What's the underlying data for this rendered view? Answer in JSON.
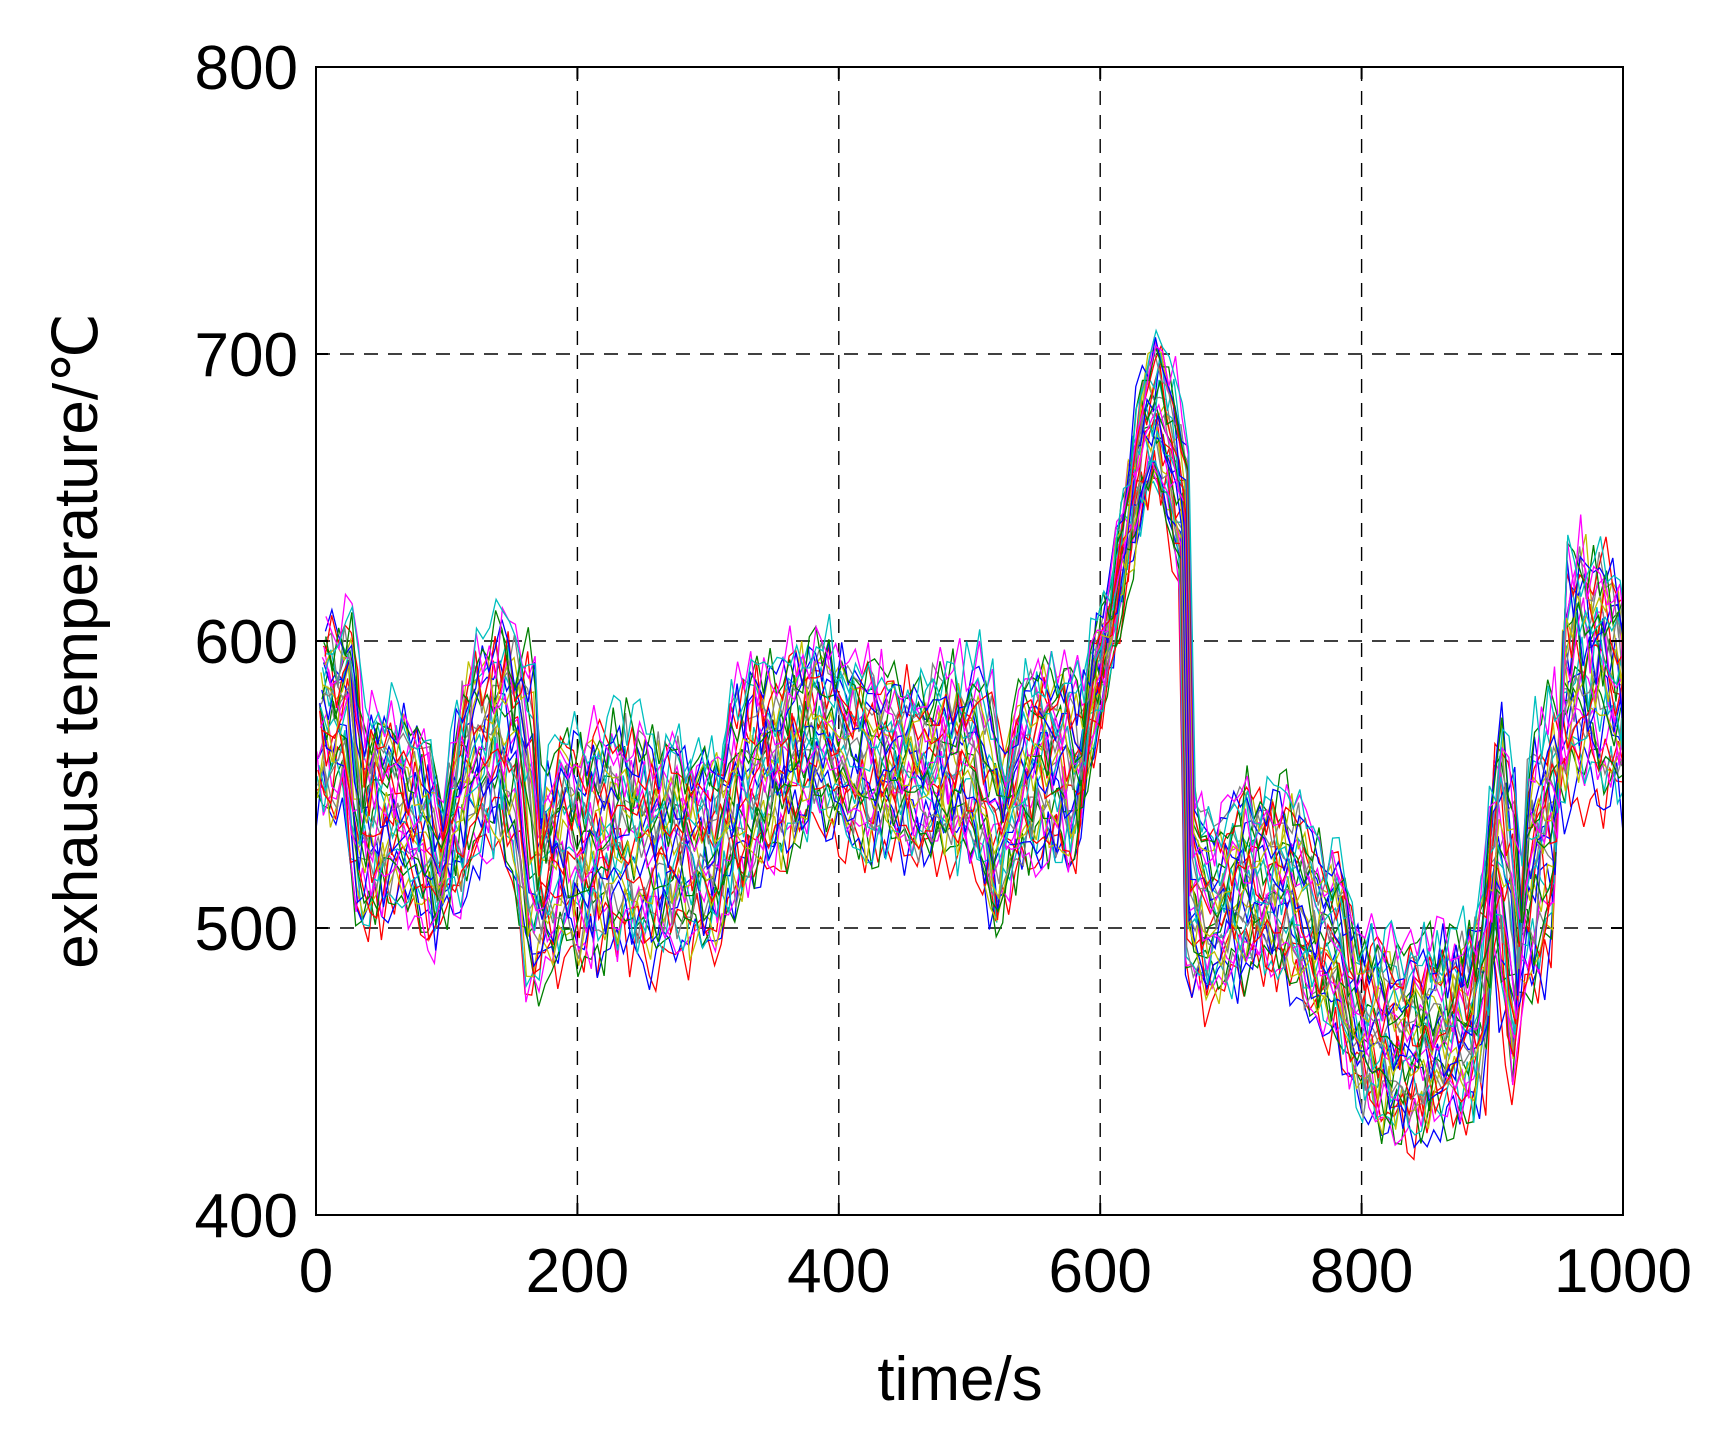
{
  "chart_data": {
    "type": "line",
    "title": "",
    "xlabel": "time/s",
    "ylabel": "exhaust temperature/℃",
    "xlim": [
      0,
      1000
    ],
    "ylim": [
      400,
      800
    ],
    "xticks": [
      0,
      200,
      400,
      600,
      800,
      1000
    ],
    "yticks": [
      400,
      500,
      600,
      700,
      800
    ],
    "xtick_labels": [
      "0",
      "200",
      "400",
      "600",
      "800",
      "1000"
    ],
    "ytick_labels": [
      "400",
      "500",
      "600",
      "700",
      "800"
    ],
    "grid": true,
    "grid_style": "dashed",
    "legend": "none",
    "series_count": 40,
    "palette": [
      "#ff0000",
      "#0000ff",
      "#008000",
      "#ff00ff",
      "#00bfbf",
      "#bfbf00",
      "#808080"
    ],
    "envelope": {
      "time_s": [
        0,
        10,
        20,
        30,
        40,
        60,
        80,
        90,
        100,
        110,
        120,
        135,
        150,
        160,
        165,
        180,
        200,
        220,
        240,
        260,
        280,
        300,
        310,
        330,
        350,
        370,
        380,
        400,
        420,
        440,
        460,
        480,
        500,
        510,
        520,
        530,
        550,
        570,
        580,
        590,
        600,
        610,
        620,
        630,
        640,
        650,
        660,
        665,
        680,
        700,
        720,
        740,
        760,
        780,
        790,
        800,
        820,
        840,
        860,
        880,
        895,
        900,
        910,
        915,
        920,
        940,
        945,
        950,
        960,
        980,
        1000
      ],
      "low": [
        545,
        538,
        545,
        505,
        500,
        510,
        505,
        490,
        505,
        510,
        525,
        530,
        525,
        485,
        480,
        490,
        490,
        495,
        490,
        490,
        495,
        490,
        500,
        515,
        525,
        530,
        540,
        535,
        525,
        530,
        525,
        525,
        525,
        510,
        500,
        515,
        525,
        525,
        520,
        555,
        570,
        595,
        620,
        640,
        655,
        640,
        625,
        490,
        475,
        480,
        485,
        485,
        470,
        465,
        450,
        435,
        430,
        430,
        435,
        435,
        450,
        490,
        460,
        450,
        470,
        490,
        500,
        545,
        550,
        550,
        545
      ],
      "high": [
        610,
        605,
        610,
        565,
        580,
        575,
        560,
        545,
        570,
        590,
        595,
        610,
        600,
        585,
        550,
        565,
        565,
        570,
        570,
        565,
        560,
        560,
        580,
        590,
        590,
        600,
        600,
        590,
        590,
        585,
        585,
        590,
        590,
        580,
        560,
        580,
        595,
        590,
        585,
        610,
        620,
        650,
        680,
        705,
        705,
        690,
        665,
        545,
        535,
        545,
        550,
        545,
        525,
        520,
        495,
        495,
        490,
        495,
        495,
        500,
        560,
        570,
        550,
        520,
        560,
        580,
        570,
        630,
        635,
        630,
        615
      ]
    }
  }
}
